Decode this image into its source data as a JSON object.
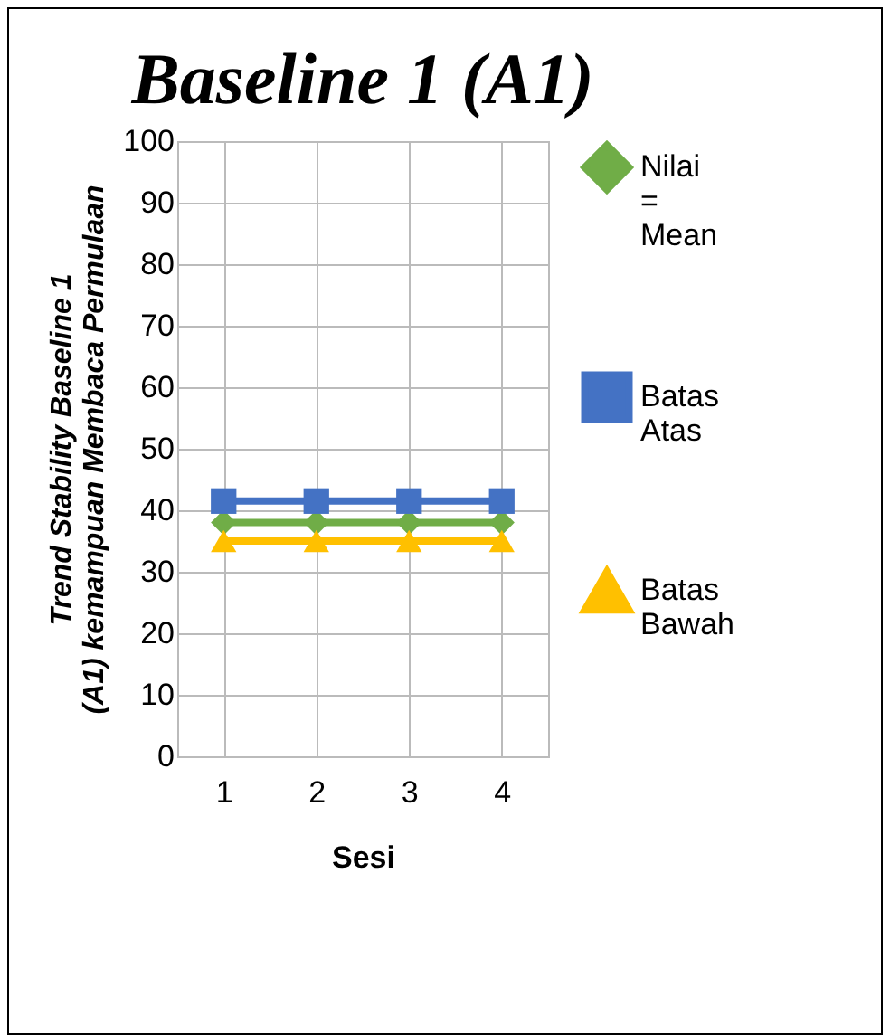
{
  "chart_data": {
    "type": "line",
    "title": "Baseline 1 (A1)",
    "xlabel": "Sesi",
    "ylabel": "Trend Stability Baseline 1 (A1) kemampuan Membaca Permulaan",
    "categories": [
      "1",
      "2",
      "3",
      "4"
    ],
    "series": [
      {
        "name": "Nilai = Mean",
        "color": "#70ad47",
        "marker": "diamond",
        "values": [
          38,
          38,
          38,
          38
        ]
      },
      {
        "name": "Batas Atas",
        "color": "#4472c4",
        "marker": "square",
        "values": [
          41.5,
          41.5,
          41.5,
          41.5
        ]
      },
      {
        "name": "Batas Bawah",
        "color": "#ffc000",
        "marker": "triangle",
        "values": [
          35,
          35,
          35,
          35
        ]
      }
    ],
    "ylim": [
      0,
      100
    ],
    "yticks": [
      0,
      10,
      20,
      30,
      40,
      50,
      60,
      70,
      80,
      90,
      100
    ],
    "grid": true,
    "legend": "right"
  }
}
